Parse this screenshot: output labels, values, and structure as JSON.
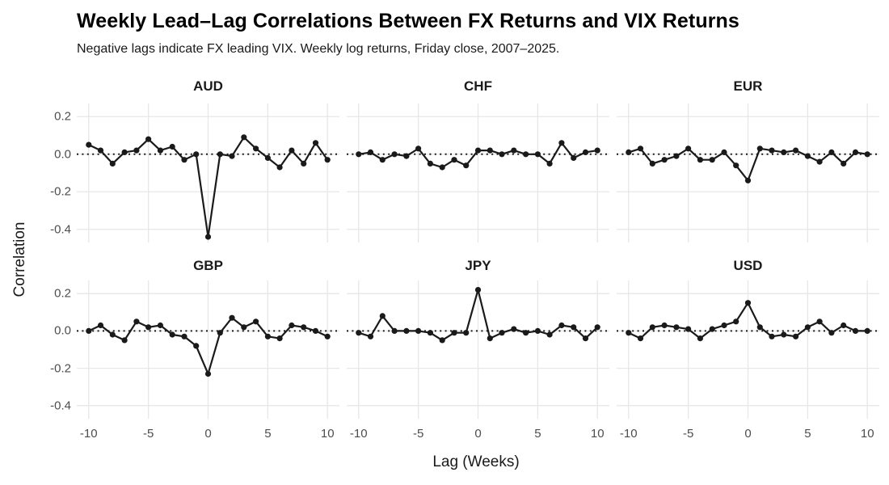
{
  "header": {
    "title": "Weekly Lead–Lag Correlations Between FX Returns and VIX Returns",
    "subtitle": "Negative lags indicate FX leading VIX. Weekly log returns, Friday close, 2007–2025."
  },
  "chart_data": {
    "type": "line",
    "title": "Weekly Lead–Lag Correlations Between FX Returns and VIX Returns",
    "subtitle": "Negative lags indicate FX leading VIX. Weekly log returns, Friday close, 2007–2025.",
    "xlabel": "Lag (Weeks)",
    "ylabel": "Correlation",
    "x": [
      -10,
      -9,
      -8,
      -7,
      -6,
      -5,
      -4,
      -3,
      -2,
      -1,
      0,
      1,
      2,
      3,
      4,
      5,
      6,
      7,
      8,
      9,
      10
    ],
    "facets": [
      {
        "name": "AUD",
        "values": [
          0.05,
          0.02,
          -0.05,
          0.01,
          0.02,
          0.08,
          0.02,
          0.04,
          -0.03,
          0.0,
          -0.44,
          0.0,
          -0.01,
          0.09,
          0.03,
          -0.02,
          -0.07,
          0.02,
          -0.05,
          0.06,
          -0.03
        ]
      },
      {
        "name": "CHF",
        "values": [
          0.0,
          0.01,
          -0.03,
          0.0,
          -0.01,
          0.03,
          -0.05,
          -0.07,
          -0.03,
          -0.06,
          0.02,
          0.02,
          0.0,
          0.02,
          0.0,
          0.0,
          -0.05,
          0.06,
          -0.02,
          0.01,
          0.02
        ]
      },
      {
        "name": "EUR",
        "values": [
          0.01,
          0.03,
          -0.05,
          -0.03,
          -0.01,
          0.03,
          -0.03,
          -0.03,
          0.01,
          -0.06,
          -0.14,
          0.03,
          0.02,
          0.01,
          0.02,
          -0.01,
          -0.04,
          0.01,
          -0.05,
          0.01,
          0.0
        ]
      },
      {
        "name": "GBP",
        "values": [
          0.0,
          0.03,
          -0.02,
          -0.05,
          0.05,
          0.02,
          0.03,
          -0.02,
          -0.03,
          -0.08,
          -0.23,
          -0.01,
          0.07,
          0.02,
          0.05,
          -0.03,
          -0.04,
          0.03,
          0.02,
          0.0,
          -0.03
        ]
      },
      {
        "name": "JPY",
        "values": [
          -0.01,
          -0.03,
          0.08,
          0.0,
          0.0,
          0.0,
          -0.01,
          -0.05,
          -0.01,
          -0.01,
          0.22,
          -0.04,
          -0.01,
          0.01,
          -0.01,
          0.0,
          -0.02,
          0.03,
          0.02,
          -0.04,
          0.02
        ]
      },
      {
        "name": "USD",
        "values": [
          -0.01,
          -0.04,
          0.02,
          0.03,
          0.02,
          0.01,
          -0.04,
          0.01,
          0.03,
          0.05,
          0.15,
          0.02,
          -0.03,
          -0.02,
          -0.03,
          0.02,
          0.05,
          -0.01,
          0.03,
          0.0,
          0.0
        ]
      }
    ],
    "x_ticks": [
      -10,
      -5,
      0,
      5,
      10
    ],
    "y_ticks": [
      0.2,
      0.0,
      -0.2,
      -0.4
    ],
    "y_tick_labels": [
      "0.2",
      "0.0",
      "-0.2",
      "-0.4"
    ],
    "xlim": [
      -11,
      11
    ],
    "ylim": [
      -0.47,
      0.27
    ],
    "grid": true,
    "legend_position": "none",
    "zero_line_style": "dotted",
    "colors": {
      "line": "#1a1a1a",
      "point": "#1a1a1a",
      "grid": "#e7e7e7",
      "zero_line": "#1a1a1a",
      "tick_label": "#4d4d4d",
      "text": "#000000",
      "background": "#ffffff"
    }
  }
}
